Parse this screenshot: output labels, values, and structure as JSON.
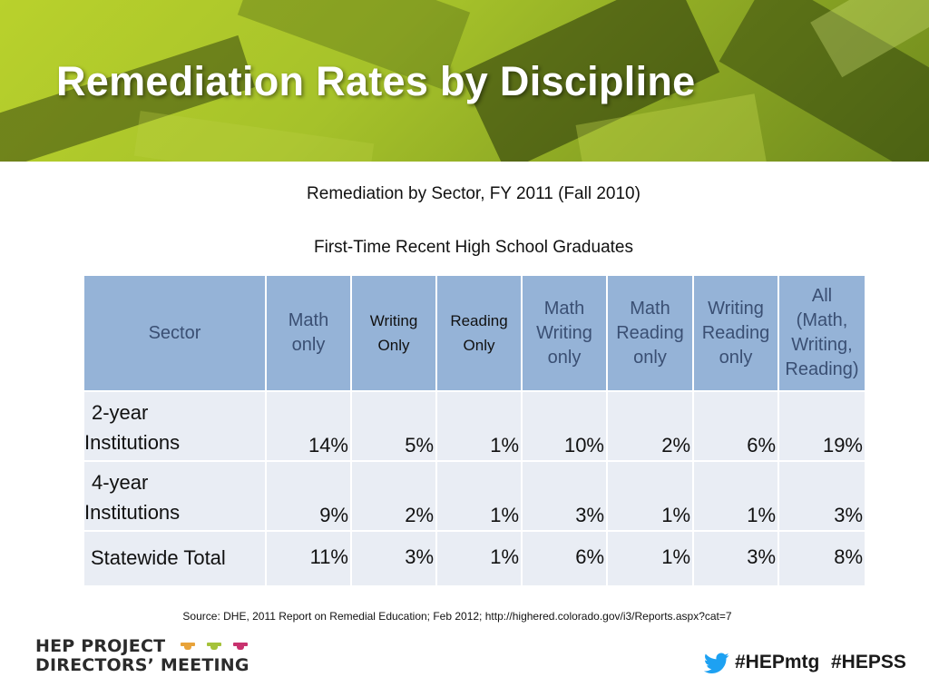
{
  "slide": {
    "title": "Remediation Rates by Discipline",
    "subtitle_line1": "Remediation by Sector, FY 2011 (Fall 2010)",
    "subtitle_line2": "First-Time Recent High School Graduates",
    "source": "Source: DHE, 2011 Report on Remedial Education; Feb 2012; http://highered.colorado.gov/i3/Reports.aspx?cat=7"
  },
  "table": {
    "headers": {
      "sector": "Sector",
      "math_only": [
        "Math",
        "only"
      ],
      "writing_only": [
        "Writing",
        "Only"
      ],
      "reading_only": [
        "Reading",
        "Only"
      ],
      "math_writing": [
        "Math",
        "Writing",
        "only"
      ],
      "math_reading": [
        "Math",
        "Reading",
        "only"
      ],
      "writing_reading": [
        "Writing",
        "Reading",
        "only"
      ],
      "all": [
        "All",
        "(Math,",
        "Writing,",
        "Reading)"
      ]
    },
    "rows": [
      {
        "name": [
          "2-year",
          "Institutions"
        ],
        "values": [
          "14%",
          "5%",
          "1%",
          "10%",
          "2%",
          "6%",
          "19%"
        ]
      },
      {
        "name": [
          "4-year",
          "Institutions"
        ],
        "values": [
          "9%",
          "2%",
          "1%",
          "3%",
          "1%",
          "1%",
          "3%"
        ]
      },
      {
        "name": [
          "Statewide Total"
        ],
        "values": [
          "11%",
          "3%",
          "1%",
          "6%",
          "1%",
          "3%",
          "8%"
        ]
      }
    ]
  },
  "branding": {
    "logo_line1": "HEP PROJECT",
    "logo_line2": "DIRECTORS’ MEETING",
    "cap_colors": [
      "#e8a33a",
      "#a5c23a",
      "#c8326e"
    ],
    "hashtag1": "#HEPmtg",
    "hashtag2": "#HEPSS",
    "twitter_icon": "twitter-bird-icon",
    "twitter_color": "#1da1f2"
  }
}
